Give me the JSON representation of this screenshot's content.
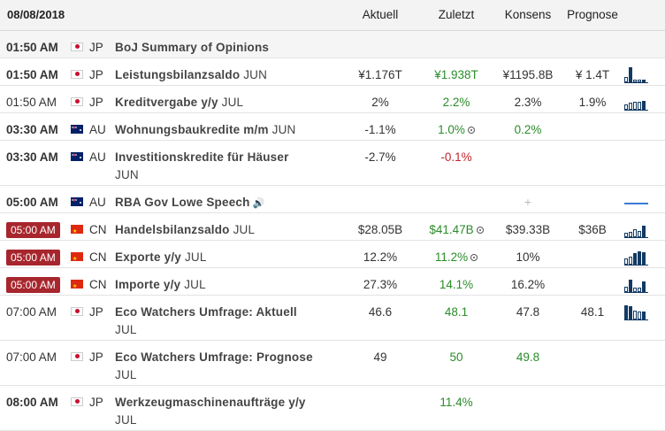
{
  "header": {
    "date": "08/08/2018",
    "col_actual": "Aktuell",
    "col_previous": "Zuletzt",
    "col_consensus": "Konsens",
    "col_forecast": "Prognose"
  },
  "rows": [
    {
      "time": "01:50 AM",
      "time_bold": true,
      "country": "JP",
      "event": "BoJ Summary of Opinions",
      "unit": "",
      "actual": "",
      "previous": "",
      "consensus": "",
      "forecast": "",
      "spark": [],
      "highlight": true
    },
    {
      "time": "01:50 AM",
      "time_bold": true,
      "country": "JP",
      "event": "Leistungsbilanzsaldo",
      "unit": "JUN",
      "actual": "¥1.176T",
      "previous": "¥1.938T",
      "consensus": "¥1195.8B",
      "forecast": "¥ 1.4T",
      "spark": [
        0.35,
        1.0,
        0.15,
        0.2,
        0.2
      ]
    },
    {
      "time": "01:50 AM",
      "time_bold": false,
      "country": "JP",
      "event": "Kreditvergabe y/y",
      "unit": "JUL",
      "actual": "2%",
      "previous": "2.2%",
      "consensus": "2.3%",
      "forecast": "1.9%",
      "spark": [
        0.35,
        0.45,
        0.5,
        0.55,
        0.6
      ]
    },
    {
      "time": "03:30 AM",
      "time_bold": true,
      "country": "AU",
      "event": "Wohnungsbaukredite m/m",
      "unit": "JUN",
      "actual": "-1.1%",
      "previous": "1.0%",
      "consensus": "0.2%",
      "forecast": "",
      "spark": []
    },
    {
      "time": "03:30 AM",
      "time_bold": true,
      "country": "AU",
      "event": "Investitionskredite für Häuser",
      "unit": "JUN",
      "actual": "-2.7%",
      "previous": "-0.1%",
      "consensus": "",
      "forecast": "",
      "spark": []
    },
    {
      "time": "05:00 AM",
      "time_bold": true,
      "country": "AU",
      "event": "RBA Gov Lowe Speech",
      "unit": "",
      "actual": "",
      "previous": "",
      "consensus": "+",
      "forecast": "",
      "spark": []
    },
    {
      "time": "05:00 AM",
      "time_bold": true,
      "country": "CN",
      "event": "Handelsbilanzsaldo",
      "unit": "JUL",
      "actual": "$28.05B",
      "previous": "$41.47B",
      "consensus": "$39.33B",
      "forecast": "$36B",
      "spark": [
        0.3,
        0.35,
        0.5,
        0.4,
        0.75
      ]
    },
    {
      "time": "05:00 AM",
      "time_bold": true,
      "country": "CN",
      "event": "Exporte y/y",
      "unit": "JUL",
      "actual": "12.2%",
      "previous": "11.2%",
      "consensus": "10%",
      "forecast": "",
      "spark": [
        0.4,
        0.5,
        0.75,
        0.9,
        0.85
      ]
    },
    {
      "time": "05:00 AM",
      "time_bold": true,
      "country": "CN",
      "event": "Importe y/y",
      "unit": "JUL",
      "actual": "27.3%",
      "previous": "14.1%",
      "consensus": "16.2%",
      "forecast": "",
      "spark": [
        0.35,
        0.8,
        0.3,
        0.3,
        0.7
      ]
    },
    {
      "time": "07:00 AM",
      "time_bold": false,
      "country": "JP",
      "event": "Eco Watchers Umfrage: Aktuell",
      "unit": "JUL",
      "actual": "46.6",
      "previous": "48.1",
      "consensus": "47.8",
      "forecast": "48.1",
      "spark": [
        0.95,
        0.9,
        0.6,
        0.55,
        0.5
      ]
    },
    {
      "time": "07:00 AM",
      "time_bold": false,
      "country": "JP",
      "event": "Eco Watchers Umfrage: Prognose",
      "unit": "JUL",
      "actual": "49",
      "previous": "50",
      "consensus": "49.8",
      "forecast": "",
      "spark": []
    },
    {
      "time": "08:00 AM",
      "time_bold": true,
      "country": "JP",
      "event": "Werkzeugmaschinenaufträge y/y",
      "unit": "JUL",
      "actual": "",
      "previous": "11.4%",
      "consensus": "",
      "forecast": "",
      "spark": []
    }
  ],
  "colors": {
    "positive": "#2a8c2a",
    "negative": "#c0262d",
    "time_badge": "#a7262d",
    "spark": "#123a63"
  }
}
